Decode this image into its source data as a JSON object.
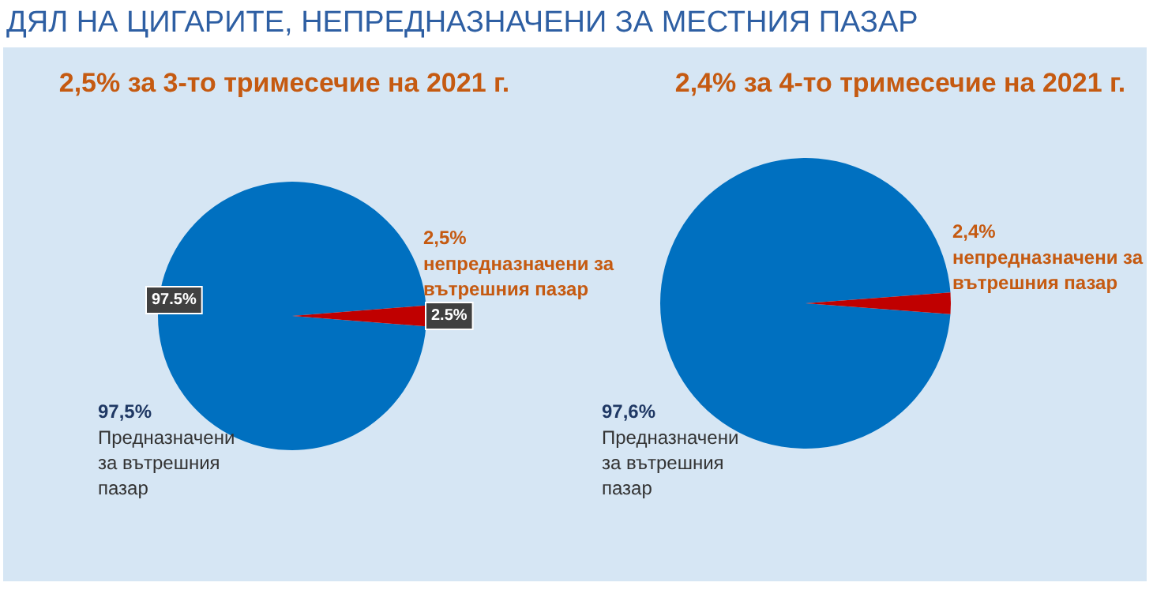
{
  "chart_data": [
    {
      "type": "pie",
      "title": "ДЯЛ НА ЦИГАРИТЕ, НЕПРЕДНАЗНАЧЕНИ ЗА МЕСТНИЯ ПАЗАР",
      "subtitle": "2,5% за 3-то тримесечие на 2021 г.",
      "categories": [
        "Предназначени за вътрешния пазар",
        "непредназначени за вътрешния пазар"
      ],
      "values": [
        97.5,
        2.5
      ],
      "colors": [
        "#0070c0",
        "#c00000"
      ],
      "value_labels": [
        "97,5%",
        "2,5%"
      ],
      "annotations": [
        "97.5%",
        "2.5%"
      ]
    },
    {
      "type": "pie",
      "subtitle": "2,4% за 4-то тримесечие на 2021 г.",
      "categories": [
        "Предназначени за вътрешния пазар",
        "непредназначени за вътрешния пазар"
      ],
      "values": [
        97.6,
        2.4
      ],
      "colors": [
        "#0070c0",
        "#c00000"
      ],
      "value_labels": [
        "97,6%",
        "2,4%"
      ]
    }
  ]
}
